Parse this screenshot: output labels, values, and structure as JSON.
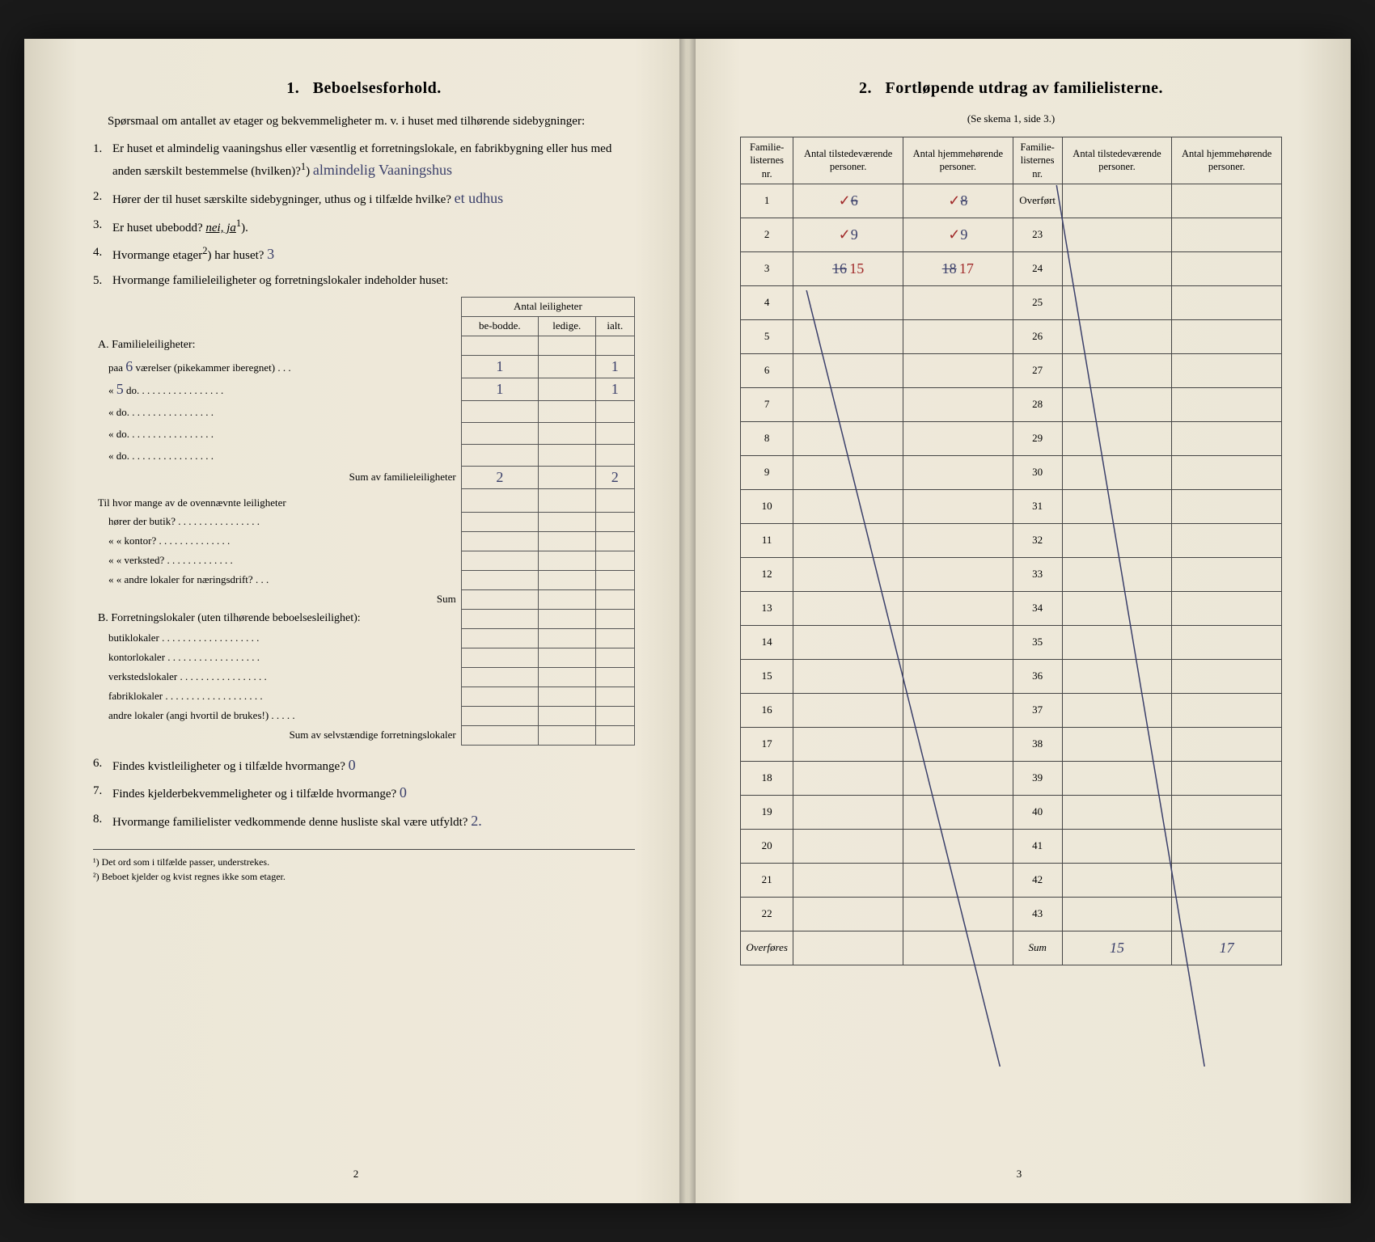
{
  "leftPage": {
    "sectionNumber": "1.",
    "sectionTitle": "Beboelsesforhold.",
    "intro": "Spørsmaal om antallet av etager og bekvemmeligheter m. v. i huset med tilhørende sidebygninger:",
    "q1": {
      "num": "1.",
      "text": "Er huset et almindelig vaaningshus eller væsentlig et forretningslokale, en fabrikbygning eller hus med anden særskilt bestemmelse (hvilken)?",
      "sup": "1",
      "answer": "almindelig Vaaningshus"
    },
    "q2": {
      "num": "2.",
      "text": "Hører der til huset særskilte sidebygninger, uthus og i tilfælde hvilke?",
      "answer": "et udhus"
    },
    "q3": {
      "num": "3.",
      "text": "Er huset ubebodd?",
      "options": "nei, ja",
      "sup": "1"
    },
    "q4": {
      "num": "4.",
      "text": "Hvormange etager",
      "sup": "2",
      "tail": ") har huset?",
      "answer": "3"
    },
    "q5": {
      "num": "5.",
      "text": "Hvormange familieleiligheter og forretningslokaler indeholder huset:"
    },
    "leilHeader": {
      "group": "Antal leiligheter",
      "c1": "be-bodde.",
      "c2": "ledige.",
      "c3": "ialt."
    },
    "sectionA": "A. Familieleiligheter:",
    "aRows": [
      {
        "label": "paa",
        "rooms": "6",
        "tail": "værelser (pikekammer iberegnet) . . .",
        "bebodde": "1",
        "ledige": "",
        "ialt": "1"
      },
      {
        "label": "«",
        "rooms": "5",
        "tail": "do.  . . . . . . . . . . . . . . . .",
        "bebodde": "1",
        "ledige": "",
        "ialt": "1"
      },
      {
        "label": "«",
        "rooms": "",
        "tail": "do.  . . . . . . . . . . . . . . . .",
        "bebodde": "",
        "ledige": "",
        "ialt": ""
      },
      {
        "label": "«",
        "rooms": "",
        "tail": "do.  . . . . . . . . . . . . . . . .",
        "bebodde": "",
        "ledige": "",
        "ialt": ""
      },
      {
        "label": "«",
        "rooms": "",
        "tail": "do.  . . . . . . . . . . . . . . . .",
        "bebodde": "",
        "ledige": "",
        "ialt": ""
      }
    ],
    "aSum": {
      "label": "Sum av familieleiligheter",
      "bebodde": "2",
      "ledige": "",
      "ialt": "2"
    },
    "midBlock": {
      "intro": "Til hvor mange av de ovennævnte leiligheter",
      "rows": [
        "hører der butik? . . . . . . . . . . . . . . . .",
        "«    « kontor? . . . . . . . . . . . . . .",
        "«    « verksted? . . . . . . . . . . . . .",
        "«    « andre lokaler for næringsdrift? . . ."
      ],
      "sum": "Sum"
    },
    "sectionB": "B. Forretningslokaler (uten tilhørende beboelsesleilighet):",
    "bRows": [
      "butiklokaler . . . . . . . . . . . . . . . . . . .",
      "kontorlokaler . . . . . . . . . . . . . . . . . .",
      "verkstedslokaler . . . . . . . . . . . . . . . . .",
      "fabriklokaler . . . . . . . . . . . . . . . . . . .",
      "andre lokaler (angi hvortil de brukes!) . . . . ."
    ],
    "bSum": "Sum av selvstændige forretningslokaler",
    "q6": {
      "num": "6.",
      "text": "Findes kvistleiligheter og i tilfælde hvormange?",
      "answer": "0"
    },
    "q7": {
      "num": "7.",
      "text": "Findes kjelderbekvemmeligheter og i tilfælde hvormange?",
      "answer": "0"
    },
    "q8": {
      "num": "8.",
      "text": "Hvormange familielister vedkommende denne husliste skal være utfyldt?",
      "answer": "2."
    },
    "fn1": {
      "mark": "¹)",
      "text": "Det ord som i tilfælde passer, understrekes."
    },
    "fn2": {
      "mark": "²)",
      "text": "Beboet kjelder og kvist regnes ikke som etager."
    },
    "pageNum": "2"
  },
  "rightPage": {
    "sectionNumber": "2.",
    "sectionTitle": "Fortløpende utdrag av familielisterne.",
    "subnote": "(Se skema 1, side 3.)",
    "headers": {
      "c1": "Familie-listernes nr.",
      "c2": "Antal tilstedeværende personer.",
      "c3": "Antal hjemmehørende personer.",
      "c4": "Familie-listernes nr.",
      "c5": "Antal tilstedeværende personer.",
      "c6": "Antal hjemmehørende personer."
    },
    "rows": [
      {
        "nr": "1",
        "a": "6",
        "aScratch": true,
        "b": "8",
        "bScratch": true,
        "nr2": "Overført"
      },
      {
        "nr": "2",
        "a": "9",
        "b": "9",
        "nr2": "23"
      },
      {
        "nr": "3",
        "a": "16",
        "aOver": "15",
        "b": "18",
        "bOver": "17",
        "nr2": "24"
      },
      {
        "nr": "4",
        "nr2": "25"
      },
      {
        "nr": "5",
        "nr2": "26"
      },
      {
        "nr": "6",
        "nr2": "27"
      },
      {
        "nr": "7",
        "nr2": "28"
      },
      {
        "nr": "8",
        "nr2": "29"
      },
      {
        "nr": "9",
        "nr2": "30"
      },
      {
        "nr": "10",
        "nr2": "31"
      },
      {
        "nr": "11",
        "nr2": "32"
      },
      {
        "nr": "12",
        "nr2": "33"
      },
      {
        "nr": "13",
        "nr2": "34"
      },
      {
        "nr": "14",
        "nr2": "35"
      },
      {
        "nr": "15",
        "nr2": "36"
      },
      {
        "nr": "16",
        "nr2": "37"
      },
      {
        "nr": "17",
        "nr2": "38"
      },
      {
        "nr": "18",
        "nr2": "39"
      },
      {
        "nr": "19",
        "nr2": "40"
      },
      {
        "nr": "20",
        "nr2": "41"
      },
      {
        "nr": "21",
        "nr2": "42"
      },
      {
        "nr": "22",
        "nr2": "43"
      }
    ],
    "overfores": "Overføres",
    "sumLabel": "Sum",
    "sumA": "15",
    "sumB": "17",
    "pageNum": "3"
  },
  "colors": {
    "ink": "#222",
    "handBlue": "#3a3f6a",
    "handRed": "#a02828",
    "paper": "#ece7d8"
  }
}
